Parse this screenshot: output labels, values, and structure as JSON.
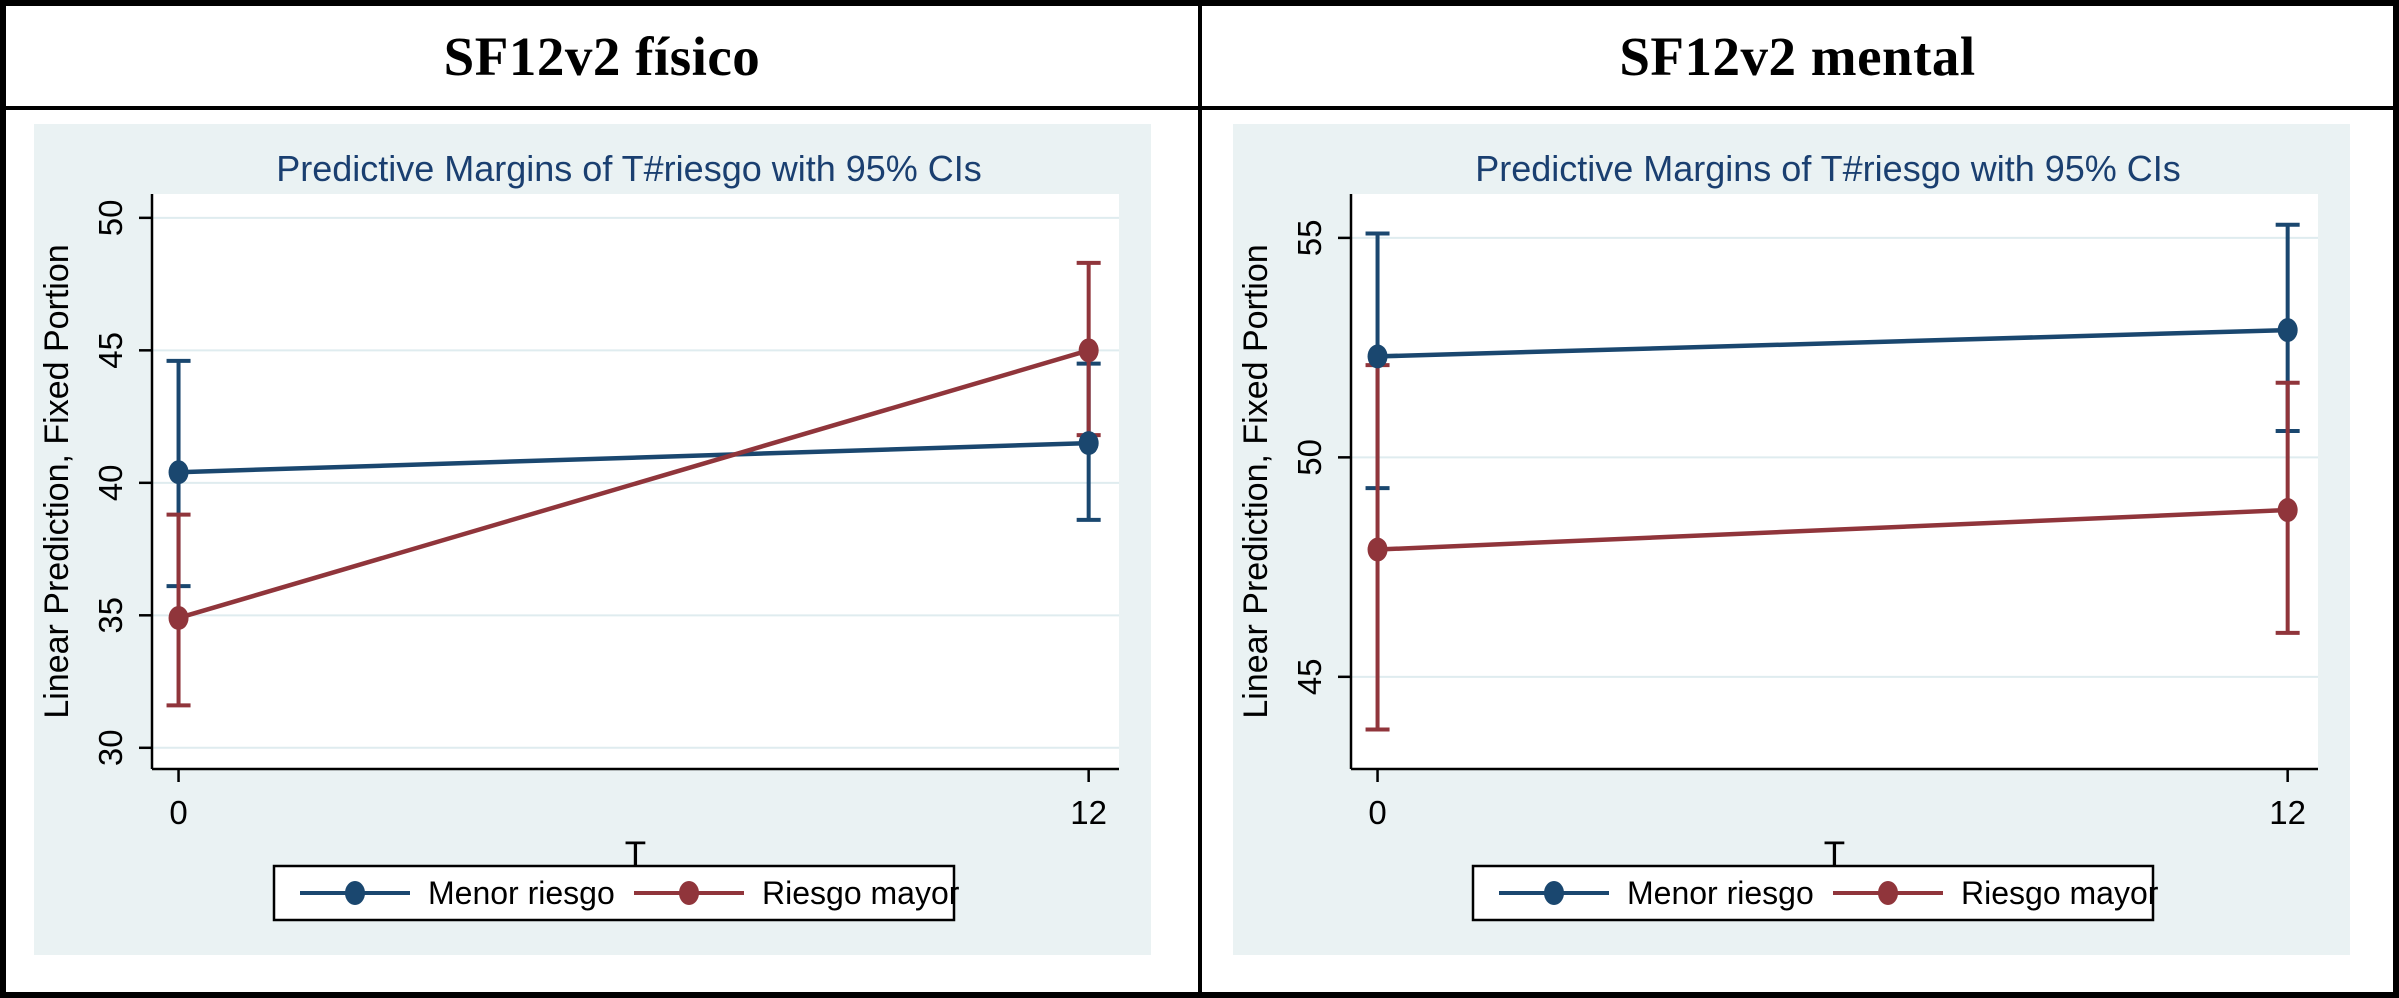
{
  "figure": {
    "panels": [
      {
        "header": "SF12v2 físico"
      },
      {
        "header": "SF12v2 mental"
      }
    ]
  },
  "colors": {
    "navy": "#1a476f",
    "maroon": "#90353b",
    "title": "#1a3f70",
    "region_bg": "#eaf2f3",
    "plot_bg": "#ffffff",
    "grid": "#dfecef",
    "axis": "#000000",
    "legend_bg": "#ffffff",
    "legend_border": "#000000"
  },
  "chart_data": [
    {
      "type": "line",
      "panel": "SF12v2 físico",
      "title": "Predictive Margins of T#riesgo with 95% CIs",
      "xlabel": "T",
      "ylabel": "Linear Prediction, Fixed Portion",
      "x": [
        0,
        12
      ],
      "xtick_labels": [
        "0",
        "12"
      ],
      "yticks": [
        30,
        35,
        40,
        45,
        50
      ],
      "ytick_labels": [
        "30",
        "35",
        "40",
        "45",
        "50"
      ],
      "xlim": [
        -0.35,
        12.4
      ],
      "ylim": [
        29.2,
        50.9
      ],
      "grid": true,
      "legend_position": "bottom",
      "error_bars": "95% CI",
      "series": [
        {
          "name": "Menor riesgo",
          "color": "#1a476f",
          "values": [
            40.4,
            41.5
          ],
          "ci_low": [
            36.1,
            38.6
          ],
          "ci_high": [
            44.6,
            44.5
          ]
        },
        {
          "name": "Riesgo mayor",
          "color": "#90353b",
          "values": [
            34.9,
            45.0
          ],
          "ci_low": [
            31.6,
            41.8
          ],
          "ci_high": [
            38.8,
            48.3
          ]
        }
      ]
    },
    {
      "type": "line",
      "panel": "SF12v2 mental",
      "title": "Predictive Margins of T#riesgo with 95% CIs",
      "xlabel": "T",
      "ylabel": "Linear Prediction, Fixed Portion",
      "x": [
        0,
        12
      ],
      "xtick_labels": [
        "0",
        "12"
      ],
      "yticks": [
        45,
        50,
        55
      ],
      "ytick_labels": [
        "45",
        "50",
        "55"
      ],
      "xlim": [
        -0.35,
        12.4
      ],
      "ylim": [
        42.9,
        56.0
      ],
      "grid": true,
      "legend_position": "bottom",
      "error_bars": "95% CI",
      "series": [
        {
          "name": "Menor riesgo",
          "color": "#1a476f",
          "values": [
            52.3,
            52.9
          ],
          "ci_low": [
            49.3,
            50.6
          ],
          "ci_high": [
            55.1,
            55.3
          ]
        },
        {
          "name": "Riesgo mayor",
          "color": "#90353b",
          "values": [
            47.9,
            48.8
          ],
          "ci_low": [
            43.8,
            46.0
          ],
          "ci_high": [
            52.1,
            51.7
          ]
        }
      ]
    }
  ]
}
